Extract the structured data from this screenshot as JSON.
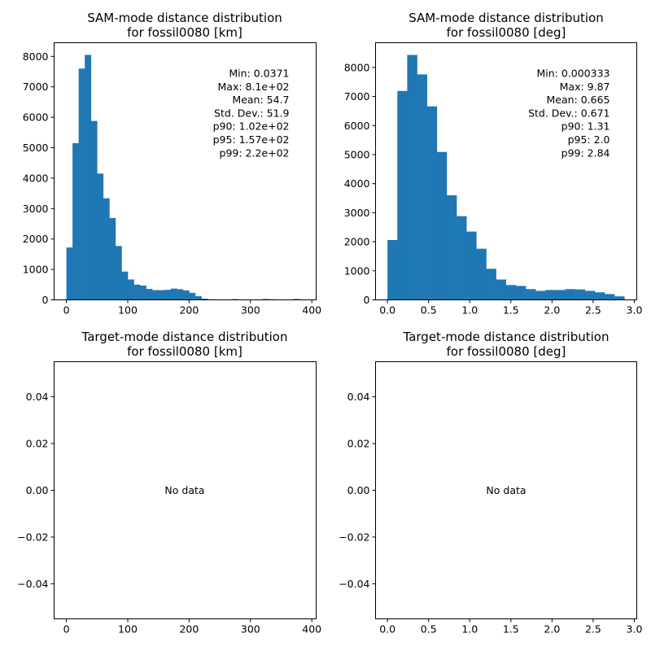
{
  "chart_data": [
    {
      "type": "bar",
      "title_line1": "SAM-mode distance distribution",
      "title_line2": "for fossil0080 [km]",
      "bins": {
        "start": 0,
        "width": 10
      },
      "values": [
        1720,
        5150,
        7600,
        8050,
        5880,
        4150,
        3340,
        2690,
        1770,
        930,
        670,
        500,
        470,
        360,
        320,
        320,
        330,
        370,
        350,
        310,
        230,
        120,
        40,
        20,
        15,
        10,
        8,
        25,
        10,
        6,
        5,
        6,
        30,
        20,
        10,
        8,
        15,
        30,
        5,
        12
      ],
      "xlim": [
        -20,
        407
      ],
      "ylim": [
        0,
        8450
      ],
      "xticks": [
        0,
        100,
        200,
        300,
        400
      ],
      "yticks": [
        0,
        1000,
        2000,
        3000,
        4000,
        5000,
        6000,
        7000,
        8000
      ],
      "stats": [
        "Min: 0.0371",
        "Max: 8.1e+02",
        "Mean: 54.7",
        "Std. Dev.: 51.9",
        "p90: 1.02e+02",
        "p95: 1.57e+02",
        "p99: 2.2e+02"
      ],
      "color": "#1f77b4"
    },
    {
      "type": "bar",
      "title_line1": "SAM-mode distance distribution",
      "title_line2": "for fossil0080 [deg]",
      "bins": {
        "start": 0,
        "width": 0.12
      },
      "values": [
        2060,
        7190,
        8430,
        7760,
        6660,
        5090,
        3600,
        2880,
        2350,
        1760,
        1070,
        700,
        510,
        480,
        370,
        310,
        340,
        340,
        370,
        360,
        310,
        260,
        200,
        120
      ],
      "xlim": [
        -0.145,
        3.03
      ],
      "ylim": [
        0,
        8850
      ],
      "xticks": [
        0.0,
        0.5,
        1.0,
        1.5,
        2.0,
        2.5,
        3.0
      ],
      "yticks": [
        0,
        1000,
        2000,
        3000,
        4000,
        5000,
        6000,
        7000,
        8000
      ],
      "stats": [
        "Min: 0.000333",
        "Max: 9.87",
        "Mean: 0.665",
        "Std. Dev.: 0.671",
        "p90: 1.31",
        "p95: 2.0",
        "p99: 2.84"
      ],
      "color": "#1f77b4"
    },
    {
      "type": "bar",
      "title_line1": "Target-mode distance distribution",
      "title_line2": "for fossil0080 [km]",
      "values": [],
      "xlim": [
        -20,
        407
      ],
      "ylim": [
        -0.055,
        0.055
      ],
      "xticks": [
        0,
        100,
        200,
        300,
        400
      ],
      "yticks": [
        -0.04,
        -0.02,
        0.0,
        0.02,
        0.04
      ],
      "annotation": "No data"
    },
    {
      "type": "bar",
      "title_line1": "Target-mode distance distribution",
      "title_line2": "for fossil0080 [deg]",
      "values": [],
      "xlim": [
        -0.145,
        3.03
      ],
      "ylim": [
        -0.055,
        0.055
      ],
      "xticks": [
        0.0,
        0.5,
        1.0,
        1.5,
        2.0,
        2.5,
        3.0
      ],
      "yticks": [
        -0.04,
        -0.02,
        0.0,
        0.02,
        0.04
      ],
      "annotation": "No data"
    }
  ]
}
